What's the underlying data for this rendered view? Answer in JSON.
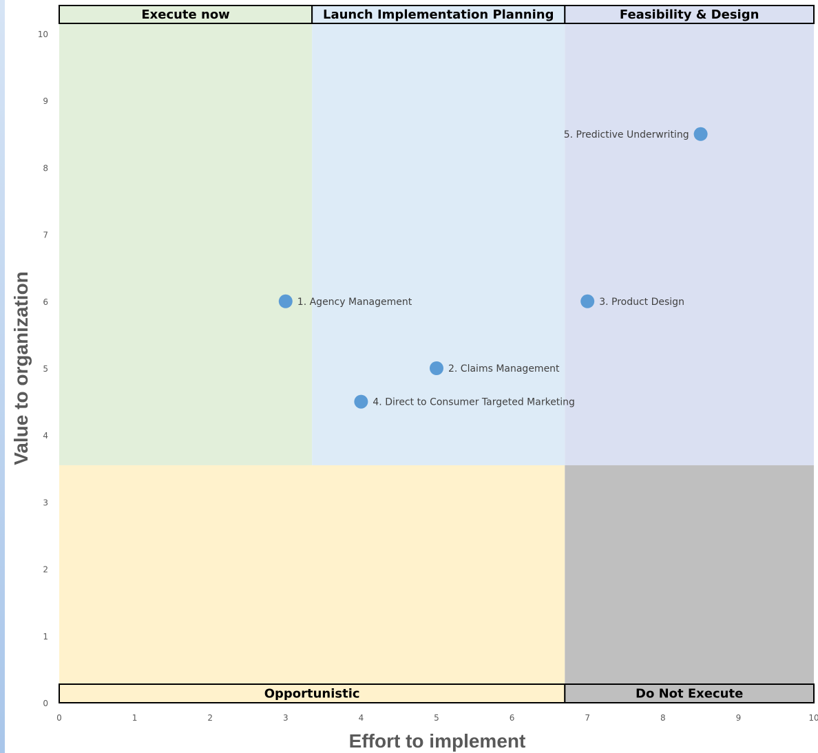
{
  "chart_data": {
    "type": "scatter",
    "xlabel": "Effort to implement",
    "ylabel": "Value to organization",
    "xlim": [
      0,
      10
    ],
    "ylim": [
      0,
      10
    ],
    "x_ticks": [
      "0",
      "1",
      "2",
      "3",
      "4",
      "5",
      "6",
      "7",
      "8",
      "9",
      "10"
    ],
    "y_ticks": [
      "0",
      "1",
      "2",
      "3",
      "4",
      "5",
      "6",
      "7",
      "8",
      "9",
      "10"
    ],
    "grid": false,
    "marker_color": "#5b9bd5",
    "points": [
      {
        "label": "1. Agency Management",
        "x": 3,
        "y": 6
      },
      {
        "label": "2. Claims Management",
        "x": 5,
        "y": 5
      },
      {
        "label": "3. Product Design",
        "x": 7,
        "y": 6
      },
      {
        "label": "4. Direct to Consumer Targeted Marketing",
        "x": 4,
        "y": 4.5
      },
      {
        "label": "5. Predictive Underwriting",
        "x": 8.5,
        "y": 8.5
      }
    ],
    "zones": [
      {
        "name": "Execute now",
        "color": "#e2efda",
        "x_range": [
          0,
          3.35
        ],
        "y_range": [
          3.55,
          10
        ]
      },
      {
        "name": "Launch Implementation Planning",
        "color": "#ddebf7",
        "x_range": [
          3.35,
          6.7
        ],
        "y_range": [
          3.55,
          10
        ]
      },
      {
        "name": "Feasibility & Design",
        "color": "#dae0f2",
        "x_range": [
          6.7,
          10
        ],
        "y_range": [
          3.55,
          10
        ]
      },
      {
        "name": "Opportunistic",
        "color": "#fff2cc",
        "x_range": [
          0,
          6.7
        ],
        "y_range": [
          0,
          3.55
        ]
      },
      {
        "name": "Do Not Execute",
        "color": "#bfbfbf",
        "x_range": [
          6.7,
          10
        ],
        "y_range": [
          0,
          3.55
        ]
      }
    ]
  }
}
